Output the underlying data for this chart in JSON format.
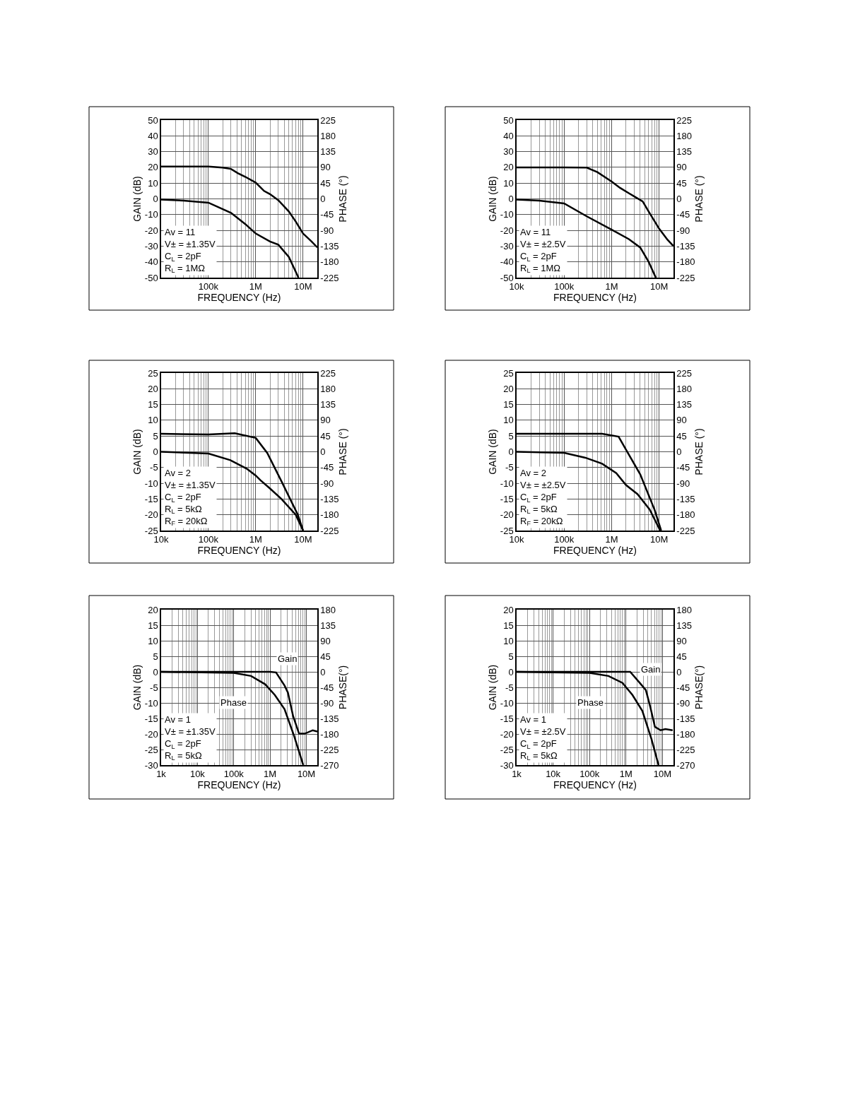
{
  "chart_data": [
    {
      "type": "line",
      "xlabel": "FREQUENCY (Hz)",
      "ylabel": "GAIN (dB)",
      "y2label": "PHASE (°)",
      "log": "x",
      "grid": true,
      "xlim": [
        10000,
        20000000
      ],
      "xticks": [
        {
          "value": 100000,
          "label": "100k"
        },
        {
          "value": 1000000,
          "label": "1M"
        },
        {
          "value": 10000000,
          "label": "10M"
        }
      ],
      "ylim": [
        -50,
        50
      ],
      "yticks": [
        -50,
        -40,
        -30,
        -20,
        -10,
        0,
        10,
        20,
        30,
        40,
        50
      ],
      "y2lim": [
        -225,
        225
      ],
      "y2ticks": [
        -225,
        -180,
        -135,
        -90,
        -45,
        0,
        45,
        90,
        135,
        180,
        225
      ],
      "annotations": [
        "Av = 11",
        "V± = ±1.35V",
        "C$_{L}$ = 2pF",
        "R$_{L}$ = 1MΩ"
      ],
      "series": [
        {
          "color": "#000000",
          "x": [
            10000,
            100000,
            200000,
            300000,
            417000,
            600000,
            1000000,
            1500000,
            2000000,
            3000000,
            5000000,
            7000000,
            10000000,
            15000000,
            20000000
          ],
          "values": [
            20.5,
            20.5,
            19.8,
            19,
            16.3,
            14,
            10.3,
            5,
            3,
            -0.9,
            -8,
            -14.4,
            -22,
            -27,
            -30.8
          ]
        },
        {
          "color": "#000000",
          "axis": "y2",
          "x": [
            10000,
            30000,
            100000,
            300000,
            600000,
            1000000,
            2000000,
            3000000,
            5000000,
            8000000
          ],
          "values": [
            -2,
            -5,
            -11,
            -40,
            -72,
            -99,
            -122,
            -131,
            -166,
            -225
          ]
        }
      ]
    },
    {
      "type": "line",
      "xlabel": "FREQUENCY (Hz)",
      "ylabel": "GAIN (dB)",
      "y2label": "PHASE (°)",
      "log": "x",
      "grid": true,
      "xlim": [
        10000,
        20000000
      ],
      "xticks": [
        {
          "value": 10000,
          "label": "10k"
        },
        {
          "value": 100000,
          "label": "100k"
        },
        {
          "value": 1000000,
          "label": "1M"
        },
        {
          "value": 10000000,
          "label": "10M"
        }
      ],
      "ylim": [
        -50,
        50
      ],
      "yticks": [
        -50,
        -40,
        -30,
        -20,
        -10,
        0,
        10,
        20,
        30,
        40,
        50
      ],
      "y2lim": [
        -225,
        225
      ],
      "y2ticks": [
        -225,
        -180,
        -135,
        -90,
        -45,
        0,
        45,
        90,
        135,
        180,
        225
      ],
      "annotations": [
        "Av = 11",
        "V± = ±2.5V",
        "C$_{L}$ = 2pF",
        "R$_{L}$ = 1MΩ"
      ],
      "series": [
        {
          "color": "#000000",
          "x": [
            10000,
            100000,
            300000,
            500000,
            1000000,
            1500000,
            2300000,
            3000000,
            4500000,
            6000000,
            10000000,
            15000000,
            20000000
          ],
          "values": [
            20,
            20,
            19.8,
            17,
            11,
            7,
            3.6,
            1.5,
            -1.6,
            -8,
            -19,
            -26,
            -30
          ]
        },
        {
          "color": "#000000",
          "axis": "y2",
          "x": [
            10000,
            30000,
            100000,
            300000,
            1000000,
            2300000,
            4000000,
            6000000,
            8500000
          ],
          "values": [
            -2,
            -5,
            -13,
            -50,
            -88,
            -115,
            -139,
            -180,
            -225
          ]
        }
      ]
    },
    {
      "type": "line",
      "xlabel": "FREQUENCY (Hz)",
      "ylabel": "GAIN (dB)",
      "y2label": "PHASE (°)",
      "log": "x",
      "grid": true,
      "xlim": [
        10000,
        20000000
      ],
      "xticks": [
        {
          "value": 10000,
          "label": "10k"
        },
        {
          "value": 100000,
          "label": "100k"
        },
        {
          "value": 1000000,
          "label": "1M"
        },
        {
          "value": 10000000,
          "label": "10M"
        }
      ],
      "ylim": [
        -25,
        25
      ],
      "yticks": [
        -25,
        -20,
        -15,
        -10,
        -5,
        0,
        5,
        10,
        15,
        20,
        25
      ],
      "y2lim": [
        -225,
        225
      ],
      "y2ticks": [
        -225,
        -180,
        -135,
        -90,
        -45,
        0,
        45,
        90,
        135,
        180,
        225
      ],
      "annotations": [
        "Av = 2",
        "V± = ±1.35V",
        "C$_{L}$ = 2pF",
        "R$_{L}$ = 5kΩ",
        "R$_{F}$ = 20kΩ"
      ],
      "series": [
        {
          "color": "#000000",
          "x": [
            10000,
            100000,
            360000,
            1000000,
            1750000,
            3500000,
            7700000,
            10000000
          ],
          "values": [
            5.7,
            5.5,
            5.9,
            4.4,
            -0.4,
            -9.4,
            -19.9,
            -25
          ]
        },
        {
          "color": "#000000",
          "axis": "y2",
          "x": [
            10000,
            100000,
            290000,
            640000,
            1000000,
            1250000,
            2000000,
            3500000,
            7000000,
            10000000
          ],
          "values": [
            0,
            -5,
            -24,
            -48,
            -68,
            -81,
            -105,
            -135,
            -180,
            -225
          ]
        }
      ]
    },
    {
      "type": "line",
      "xlabel": "FREQUENCY (Hz)",
      "ylabel": "GAIN (dB)",
      "y2label": "PHASE (°)",
      "log": "x",
      "grid": true,
      "xlim": [
        10000,
        20000000
      ],
      "xticks": [
        {
          "value": 10000,
          "label": "10k"
        },
        {
          "value": 100000,
          "label": "100k"
        },
        {
          "value": 1000000,
          "label": "1M"
        },
        {
          "value": 10000000,
          "label": "10M"
        }
      ],
      "ylim": [
        -25,
        25
      ],
      "yticks": [
        -25,
        -20,
        -15,
        -10,
        -5,
        0,
        5,
        10,
        15,
        20,
        25
      ],
      "y2lim": [
        -225,
        225
      ],
      "y2ticks": [
        -225,
        -180,
        -135,
        -90,
        -45,
        0,
        45,
        90,
        135,
        180,
        225
      ],
      "annotations": [
        "Av = 2",
        "V± = ±2.5V",
        "C$_{L}$ = 2pF",
        "R$_{L}$ = 5kΩ",
        "R$_{F}$ = 20kΩ"
      ],
      "series": [
        {
          "color": "#000000",
          "x": [
            10000,
            630000,
            1400000,
            2000000,
            4000000,
            8000000,
            11000000
          ],
          "values": [
            5.7,
            5.7,
            4.8,
            0.7,
            -7.2,
            -18.4,
            -25
          ]
        },
        {
          "color": "#000000",
          "axis": "y2",
          "x": [
            10000,
            100000,
            280000,
            630000,
            1250000,
            2000000,
            3500000,
            6300000,
            10500000
          ],
          "values": [
            0,
            -3,
            -17,
            -34,
            -61,
            -95,
            -121,
            -165,
            -225
          ]
        }
      ]
    },
    {
      "type": "line",
      "xlabel": "FREQUENCY (Hz)",
      "ylabel": "GAIN (dB)",
      "y2label": "PHASE(°)",
      "log": "x",
      "grid": true,
      "xlim": [
        1000,
        20000000
      ],
      "xticks": [
        {
          "value": 1000,
          "label": "1k"
        },
        {
          "value": 10000,
          "label": "10k"
        },
        {
          "value": 100000,
          "label": "100k"
        },
        {
          "value": 1000000,
          "label": "1M"
        },
        {
          "value": 10000000,
          "label": "10M"
        }
      ],
      "ylim": [
        -30,
        20
      ],
      "yticks": [
        -30,
        -25,
        -20,
        -15,
        -10,
        -5,
        0,
        5,
        10,
        15,
        20
      ],
      "y2lim": [
        -270,
        180
      ],
      "y2ticks": [
        -270,
        -225,
        -180,
        -135,
        -90,
        -45,
        0,
        45,
        90,
        135,
        180
      ],
      "annotations": [
        "Av = 1",
        "V± = ±1.35V",
        "C$_{L}$ = 2pF",
        "R$_{L}$ = 5kΩ"
      ],
      "series": [
        {
          "name": "Gain",
          "color": "#000000",
          "x": [
            1000,
            1000000,
            1460000,
            2500000,
            3100000,
            4300000,
            6300000,
            9000000,
            15000000,
            20000000
          ],
          "values": [
            0,
            0,
            -0.2,
            -4.4,
            -6.7,
            -14.2,
            -19.9,
            -19.9,
            -18.8,
            -19.2
          ]
        },
        {
          "name": "Phase",
          "color": "#000000",
          "axis": "y2",
          "x": [
            1000,
            100000,
            300000,
            730000,
            1350000,
            2500000,
            4500000,
            8200000
          ],
          "values": [
            0,
            -3,
            -12,
            -36,
            -67,
            -108,
            -183,
            -270
          ]
        }
      ]
    },
    {
      "type": "line",
      "xlabel": "FREQUENCY (Hz)",
      "ylabel": "GAIN (dB)",
      "y2label": "PHASE(°)",
      "log": "x",
      "grid": true,
      "xlim": [
        1000,
        20000000
      ],
      "xticks": [
        {
          "value": 1000,
          "label": "1k"
        },
        {
          "value": 10000,
          "label": "10k"
        },
        {
          "value": 100000,
          "label": "100k"
        },
        {
          "value": 1000000,
          "label": "1M"
        },
        {
          "value": 10000000,
          "label": "10M"
        }
      ],
      "ylim": [
        -30,
        20
      ],
      "yticks": [
        -30,
        -25,
        -20,
        -15,
        -10,
        -5,
        0,
        5,
        10,
        15,
        20
      ],
      "y2lim": [
        -270,
        180
      ],
      "y2ticks": [
        -270,
        -225,
        -180,
        -135,
        -90,
        -45,
        0,
        45,
        90,
        135,
        180
      ],
      "annotations": [
        "Av = 1",
        "V± = ±2.5V",
        "C$_{L}$ = 2pF",
        "R$_{L}$ = 5kΩ"
      ],
      "series": [
        {
          "name": "Gain",
          "color": "#000000",
          "x": [
            1000,
            1300000,
            2400000,
            3500000,
            4600000,
            6200000,
            8900000,
            12000000,
            19000000
          ],
          "values": [
            0,
            0,
            -3.6,
            -5.9,
            -11.2,
            -17.7,
            -18.8,
            -18.4,
            -18.8
          ]
        },
        {
          "name": "Phase",
          "color": "#000000",
          "axis": "y2",
          "x": [
            1000,
            100000,
            330000,
            800000,
            1500000,
            2800000,
            5000000,
            7800000
          ],
          "values": [
            0,
            -3,
            -12,
            -32,
            -67,
            -113,
            -195,
            -270
          ]
        }
      ]
    }
  ]
}
